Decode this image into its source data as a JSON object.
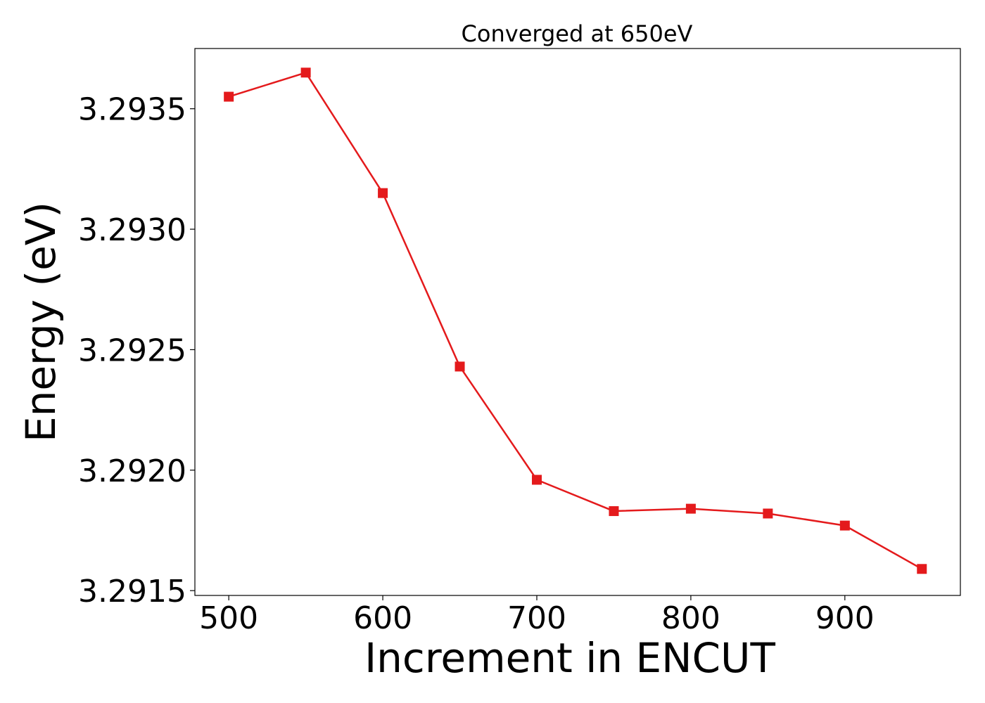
{
  "chart_data": {
    "type": "line",
    "title": "Converged at 650eV",
    "xlabel": "Increment in ENCUT",
    "ylabel": "Energy (eV)",
    "xlim": [
      478,
      975
    ],
    "ylim": [
      3.29148,
      3.29375
    ],
    "x_ticks": [
      500,
      600,
      700,
      800,
      900
    ],
    "x_tick_labels": [
      "500",
      "600",
      "700",
      "800",
      "900"
    ],
    "y_ticks": [
      3.2915,
      3.292,
      3.2925,
      3.293,
      3.2935
    ],
    "y_tick_labels": [
      "3.2915",
      "3.2920",
      "3.2925",
      "3.2930",
      "3.2935"
    ],
    "grid": false,
    "series": [
      {
        "color": "#e41a1c",
        "marker": "square",
        "x": [
          500,
          550,
          600,
          650,
          700,
          750,
          800,
          850,
          900,
          950
        ],
        "y": [
          3.29355,
          3.29365,
          3.29315,
          3.29243,
          3.29196,
          3.29183,
          3.29184,
          3.29182,
          3.29177,
          3.29159
        ]
      }
    ]
  }
}
